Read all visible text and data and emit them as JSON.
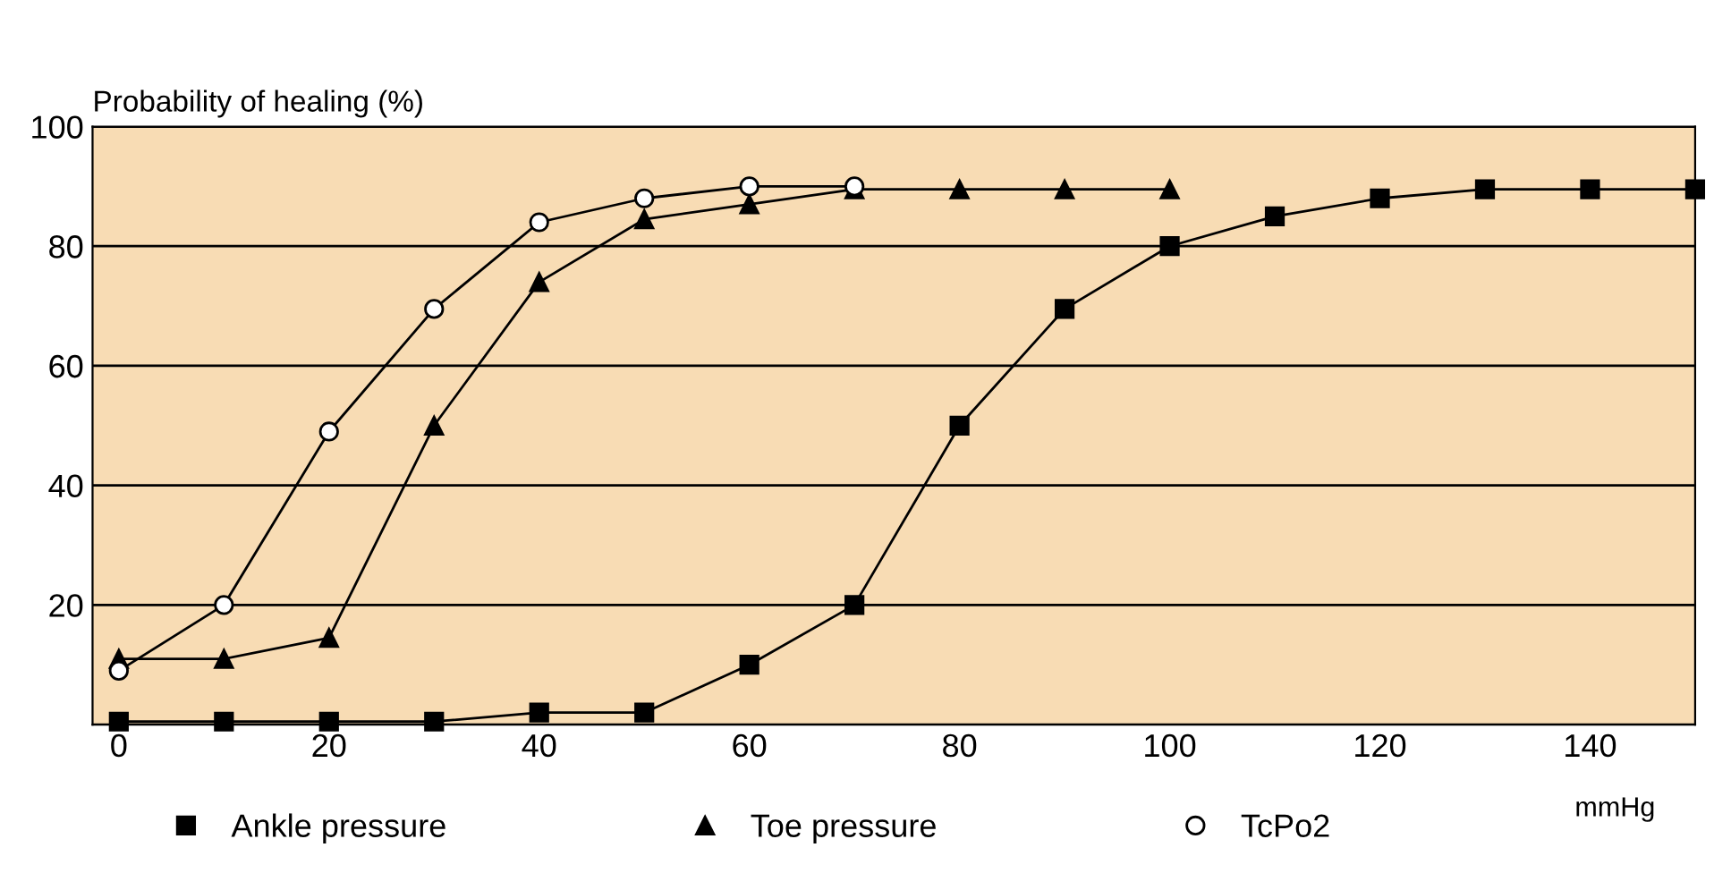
{
  "chart_data": {
    "type": "line",
    "ylabel": "Probability of healing (%)",
    "xlabel": "mmHg",
    "series": [
      {
        "name": "Ankle pressure",
        "color": "#000000",
        "marker": "square",
        "x": [
          0,
          10,
          20,
          30,
          40,
          50,
          60,
          70,
          80,
          90,
          100,
          110,
          120,
          130,
          140,
          150
        ],
        "values": [
          0.5,
          0.5,
          0.5,
          0.5,
          2,
          2,
          10,
          20,
          50,
          69.5,
          80,
          85,
          88,
          89.5,
          89.5,
          89.5
        ]
      },
      {
        "name": "Toe pressure",
        "color": "#000000",
        "marker": "triangle",
        "x": [
          0,
          10,
          20,
          30,
          40,
          50,
          60,
          70,
          80,
          90,
          100
        ],
        "values": [
          11,
          11,
          14.5,
          50,
          74,
          84.5,
          87,
          89.5,
          89.5,
          89.5,
          89.5
        ]
      },
      {
        "name": "TcPo2",
        "color": "#000000",
        "marker": "circle",
        "x": [
          0,
          10,
          20,
          30,
          40,
          50,
          60,
          70
        ],
        "values": [
          9,
          20,
          49,
          69.5,
          84,
          88,
          90,
          90
        ]
      }
    ],
    "xlim": [
      -2.5,
      150
    ],
    "xticks": [
      0,
      20,
      40,
      60,
      80,
      100,
      120,
      140
    ],
    "ylim": [
      0,
      100
    ],
    "yticks": [
      {
        "value": 0,
        "label": null
      },
      20,
      40,
      60,
      80,
      100
    ],
    "grid": "y",
    "legend": "bottom",
    "line_style": "solid"
  }
}
